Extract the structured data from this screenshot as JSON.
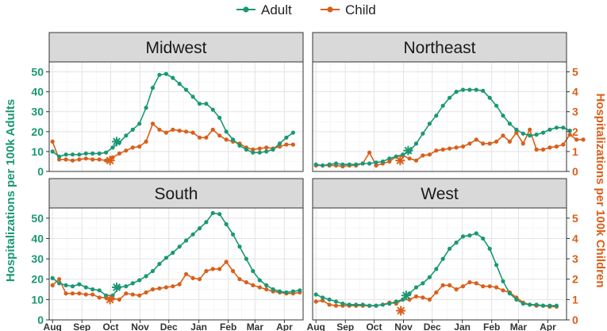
{
  "chart_data": {
    "type": "line",
    "legend": {
      "position": "top-center",
      "entries": [
        {
          "name": "Adult",
          "color": "#1a9873"
        },
        {
          "name": "Child",
          "color": "#d95f1a"
        }
      ]
    },
    "ylabel_left": "Hospitalizations per 100k Adults",
    "ylabel_right": "Hospitalizations per 100k Children",
    "ylim_left": [
      0,
      55
    ],
    "ylim_right": [
      0,
      5.5
    ],
    "left_ticks": [
      "0",
      "10",
      "20",
      "30",
      "40",
      "50"
    ],
    "right_ticks": [
      "0",
      "1",
      "2",
      "3",
      "4",
      "5"
    ],
    "x_ticks": [
      "Aug",
      "Sep",
      "Oct",
      "Nov",
      "Dec",
      "Jan",
      "Feb",
      "Mar",
      "Apr"
    ],
    "x_units": "weeks since start of August",
    "x_tick_positions": [
      0,
      4.4,
      8.7,
      13.1,
      17.4,
      21.9,
      26.3,
      30.3,
      34.7
    ],
    "x_range": [
      -0.5,
      37.5
    ],
    "grid": true,
    "panels": [
      {
        "title": "Midwest",
        "adult_values": [
          10,
          7.5,
          8.5,
          8.5,
          8.5,
          9,
          9,
          9,
          9.5,
          12,
          14.5,
          18,
          21,
          24,
          32,
          42,
          48.5,
          49,
          47,
          44,
          41,
          37.5,
          34,
          34,
          31,
          27,
          20,
          16,
          13,
          11,
          9.5,
          9.5,
          10,
          11,
          14,
          17,
          19.5
        ],
        "child_values": [
          1.5,
          0.6,
          0.6,
          0.55,
          0.6,
          0.65,
          0.6,
          0.6,
          0.55,
          0.7,
          0.9,
          1.05,
          1.2,
          1.25,
          1.5,
          2.4,
          2.1,
          1.95,
          2.1,
          2.05,
          2.0,
          1.95,
          1.7,
          1.7,
          2.1,
          1.8,
          1.6,
          1.5,
          1.4,
          1.2,
          1.1,
          1.15,
          1.2,
          1.15,
          1.25,
          1.35,
          1.35
        ],
        "adult_marker": {
          "x": 9.6,
          "value": 15
        },
        "child_marker": {
          "x": 8.6,
          "value": 0.55
        }
      },
      {
        "title": "Northeast",
        "adult_values": [
          3.5,
          3,
          3.5,
          4,
          3.5,
          3.5,
          3.5,
          4,
          4,
          4.5,
          5,
          6.5,
          7.5,
          8.5,
          10,
          14,
          19,
          24,
          28,
          33,
          37,
          40,
          41,
          41,
          41,
          40.5,
          37,
          33,
          28,
          24,
          21,
          19,
          18,
          18.5,
          19.5,
          21,
          22,
          22,
          20.5
        ],
        "child_values": [
          0.3,
          0.3,
          0.3,
          0.3,
          0.25,
          0.3,
          0.3,
          0.4,
          0.95,
          0.3,
          0.4,
          0.5,
          0.75,
          0.8,
          0.65,
          0.55,
          0.8,
          0.85,
          1.05,
          1.1,
          1.15,
          1.2,
          1.25,
          1.4,
          1.6,
          1.4,
          1.4,
          1.5,
          1.8,
          1.5,
          1.95,
          1.4,
          2.1,
          1.1,
          1.1,
          1.2,
          1.25,
          1.35,
          1.85,
          1.6,
          1.6
        ],
        "adult_marker": {
          "x": 13.8,
          "value": 10.5
        },
        "child_marker": {
          "x": 12.6,
          "value": 0.55
        }
      },
      {
        "title": "South",
        "adult_values": [
          20.5,
          18,
          17,
          16.5,
          17.5,
          16,
          15,
          14.5,
          12,
          12,
          16,
          16.5,
          18,
          19.5,
          21.5,
          24,
          27.5,
          30.5,
          33,
          36,
          39,
          42,
          45,
          48,
          52.5,
          52,
          47,
          42,
          36,
          30,
          24,
          19.5,
          17,
          15,
          14,
          13.5,
          14,
          14.5
        ],
        "child_values": [
          1.7,
          2.0,
          1.3,
          1.3,
          1.3,
          1.25,
          1.25,
          1.1,
          1.1,
          1.05,
          1.0,
          1.3,
          1.25,
          1.2,
          1.35,
          1.5,
          1.55,
          1.6,
          1.65,
          1.75,
          2.25,
          2.05,
          2.0,
          2.4,
          2.5,
          2.5,
          2.85,
          2.4,
          2.0,
          1.85,
          1.7,
          1.6,
          1.5,
          1.4,
          1.35,
          1.3,
          1.3,
          1.35
        ],
        "adult_marker": {
          "x": 9.6,
          "value": 16
        },
        "child_marker": {
          "x": 8.6,
          "value": 1.0
        }
      },
      {
        "title": "West",
        "adult_values": [
          12.5,
          11,
          10,
          9,
          8,
          7.5,
          7.5,
          7.5,
          7,
          7,
          7.5,
          8,
          9,
          10,
          13,
          16,
          18,
          21,
          25,
          30,
          35,
          38,
          41,
          41.5,
          42.5,
          40,
          35,
          27,
          19,
          13,
          10,
          8,
          7.5,
          7.5,
          7,
          7,
          7
        ],
        "child_values": [
          0.9,
          0.95,
          0.75,
          0.7,
          0.7,
          0.7,
          0.7,
          0.7,
          0.7,
          0.7,
          0.75,
          0.85,
          0.8,
          1.0,
          1.0,
          1.15,
          1.1,
          1.0,
          1.35,
          1.7,
          1.7,
          1.5,
          1.65,
          1.85,
          1.8,
          1.65,
          1.65,
          1.6,
          1.45,
          1.35,
          1.1,
          0.85,
          0.75,
          0.7,
          0.7,
          0.65,
          0.65
        ],
        "adult_marker": {
          "x": 13.5,
          "value": 12
        },
        "child_marker": {
          "x": 12.7,
          "value": 0.45
        }
      }
    ]
  }
}
